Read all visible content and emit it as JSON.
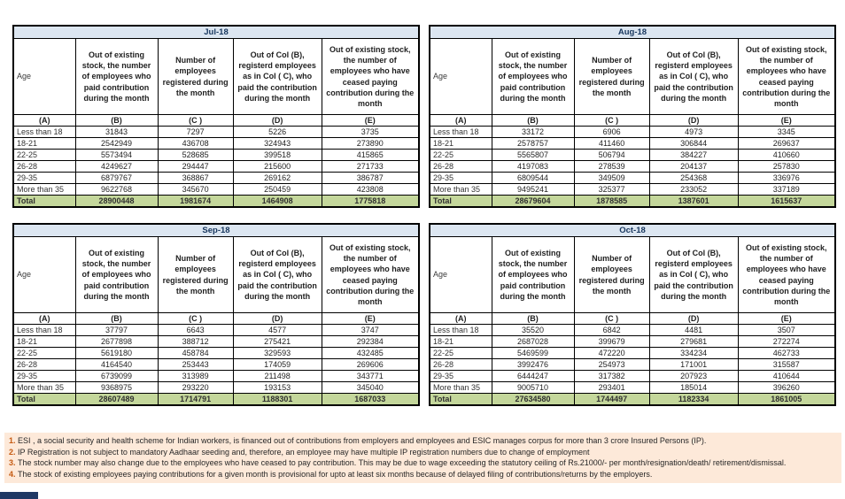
{
  "columns": {
    "age_label": "Age",
    "headers": [
      "Out of existing stock, the number of employees who paid contribution during the month",
      "Number of employees registered during the month",
      "Out of Col (B), registerd employees as in Col ( C), who paid the contribution during the month",
      "Out of existing stock, the number of employees who have ceased paying contribution during the month"
    ],
    "letters": [
      "(A)",
      "(B)",
      "(C )",
      "(D)",
      "(E)"
    ]
  },
  "age_groups": [
    "Less than 18",
    "18-21",
    "22-25",
    "26-28",
    "29-35",
    "More than 35"
  ],
  "total_label": "Total",
  "tables": [
    {
      "month": "Jul-18",
      "rows": [
        [
          31843,
          7297,
          5226,
          3735
        ],
        [
          2542949,
          436708,
          324943,
          273890
        ],
        [
          5573494,
          528685,
          399518,
          415865
        ],
        [
          4249627,
          294447,
          215600,
          271733
        ],
        [
          6879767,
          368867,
          269162,
          386787
        ],
        [
          9622768,
          345670,
          250459,
          423808
        ]
      ],
      "total": [
        28900448,
        1981674,
        1464908,
        1775818
      ]
    },
    {
      "month": "Aug-18",
      "rows": [
        [
          33172,
          6906,
          4973,
          3345
        ],
        [
          2578757,
          411460,
          306844,
          269637
        ],
        [
          5565807,
          506794,
          384227,
          410660
        ],
        [
          4197083,
          278539,
          204137,
          257830
        ],
        [
          6809544,
          349509,
          254368,
          336976
        ],
        [
          9495241,
          325377,
          233052,
          337189
        ]
      ],
      "total": [
        28679604,
        1878585,
        1387601,
        1615637
      ]
    },
    {
      "month": "Sep-18",
      "rows": [
        [
          37797,
          6643,
          4577,
          3747
        ],
        [
          2677898,
          388712,
          275421,
          292384
        ],
        [
          5619180,
          458784,
          329593,
          432485
        ],
        [
          4164540,
          253443,
          174059,
          269606
        ],
        [
          6739099,
          313989,
          211498,
          343771
        ],
        [
          9368975,
          293220,
          193153,
          345040
        ]
      ],
      "total": [
        28607489,
        1714791,
        1188301,
        1687033
      ]
    },
    {
      "month": "Oct-18",
      "rows": [
        [
          35520,
          6842,
          4481,
          3507
        ],
        [
          2687028,
          399679,
          279681,
          272274
        ],
        [
          5469599,
          472220,
          334234,
          462733
        ],
        [
          3992476,
          254973,
          171001,
          315587
        ],
        [
          6444247,
          317382,
          207923,
          410644
        ],
        [
          9005710,
          293401,
          185014,
          396260
        ]
      ],
      "total": [
        27634580,
        1744497,
        1182334,
        1861005
      ]
    }
  ],
  "footnotes": [
    {
      "num": "1.",
      "text": "ESI , a social security and health scheme for Indian workers, is financed out of contributions from employers and employees and ESIC manages corpus for more than 3 crore Insured Persons (IP)."
    },
    {
      "num": "2.",
      "text": "IP Registration is not subject to mandatory Aadhaar seeding and, therefore, an employee may have multiple IP registration numbers due to change of employment"
    },
    {
      "num": "3.",
      "text": "The stock number may also change due to the employees who have ceased to pay contribution. This may be due to wage exceeding the statutory ceiling of Rs.21000/- per month/resignation/death/ retirement/dismissal."
    },
    {
      "num": "4.",
      "text": "The stock of existing employees paying contributions for a given month is provisional for upto at least six months because of delayed filing of contributions/returns by the employers."
    }
  ],
  "colors": {
    "month_header_bg": "#dce6f1",
    "month_header_text": "#17365d",
    "total_row_bg": "#c4d79b",
    "footnote_bg": "#fde9d9",
    "footnote_number": "#c55a11",
    "border": "#000000"
  }
}
